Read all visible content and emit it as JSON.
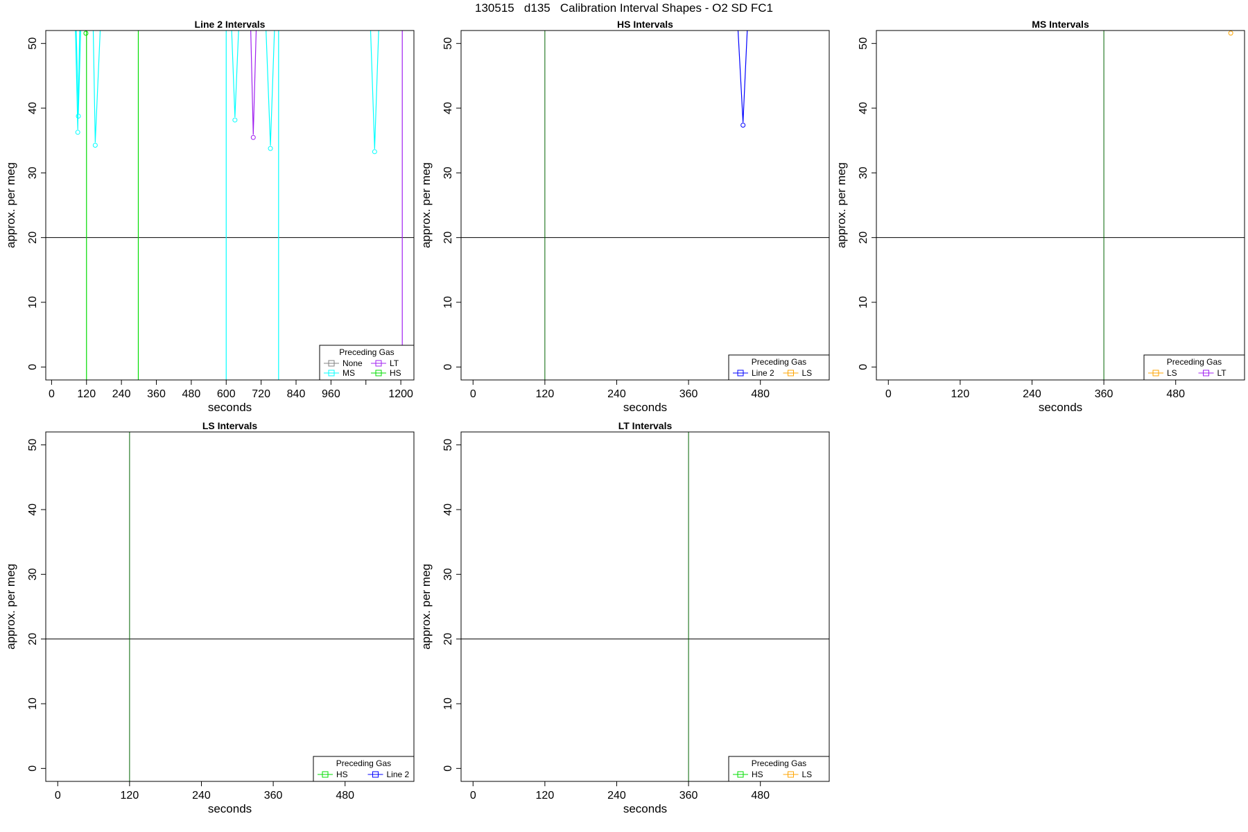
{
  "figure": {
    "title": "130515   d135   Calibration Interval Shapes - O2 SD FC1"
  },
  "colors": {
    "Line 2": "#0000ff",
    "HS": "#00dd00",
    "MS": "#00ffff",
    "LS": "#ffa500",
    "LT": "#a020f0",
    "None": "#808080",
    "reference": "#000000",
    "boundary": "#006400"
  },
  "chart_data": [
    {
      "type": "line",
      "title": "Line 2 Intervals",
      "xlabel": "seconds",
      "ylabel": "approx. per meg",
      "xlim": [
        -20,
        1245
      ],
      "ylim": [
        -2,
        52
      ],
      "xticks": [
        0,
        120,
        240,
        360,
        480,
        600,
        720,
        840,
        960,
        1080,
        1200
      ],
      "xtick_labels": [
        "0",
        "120",
        "240",
        "360",
        "480",
        "600",
        "720",
        "840",
        "960",
        "",
        "1200"
      ],
      "yticks": [
        0,
        10,
        20,
        30,
        40,
        50
      ],
      "reference_line_y": 20,
      "series": [
        {
          "name": "MS",
          "x": [
            78,
            90,
            100
          ],
          "y": [
            60,
            36.7,
            60
          ]
        },
        {
          "name": "MS",
          "x": [
            80,
            92,
            105
          ],
          "y": [
            60,
            39.2,
            60
          ]
        },
        {
          "name": "MS",
          "x": [
            140,
            150,
            175
          ],
          "y": [
            60,
            34.7,
            60
          ]
        },
        {
          "name": "HS",
          "x": [
            115,
            118,
            122
          ],
          "y": [
            60,
            52,
            60
          ]
        },
        {
          "name": "HS",
          "x": [
            298,
            298
          ],
          "y": [
            -5,
            60
          ]
        },
        {
          "name": "HS",
          "x": [
            120,
            120
          ],
          "y": [
            -5,
            60
          ]
        },
        {
          "name": "MS",
          "x": [
            600,
            600
          ],
          "y": [
            -5,
            60
          ]
        },
        {
          "name": "MS",
          "x": [
            612,
            630,
            650
          ],
          "y": [
            60,
            38.6,
            60
          ]
        },
        {
          "name": "LT",
          "x": [
            680,
            693,
            708
          ],
          "y": [
            60,
            35.9,
            60
          ]
        },
        {
          "name": "MS",
          "x": [
            730,
            752,
            772
          ],
          "y": [
            60,
            34.2,
            60
          ]
        },
        {
          "name": "MS",
          "x": [
            780,
            780
          ],
          "y": [
            -5,
            60
          ]
        },
        {
          "name": "MS",
          "x": [
            1090,
            1110,
            1130
          ],
          "y": [
            60,
            33.7,
            60
          ]
        },
        {
          "name": "LT",
          "x": [
            1205,
            1205
          ],
          "y": [
            -5,
            60
          ]
        }
      ],
      "legend": {
        "title": "Preceding Gas",
        "position": "bottom-right",
        "entries": [
          "None",
          "LT",
          "MS",
          "HS"
        ]
      }
    },
    {
      "type": "line",
      "title": "HS Intervals",
      "xlabel": "seconds",
      "ylabel": "approx. per meg",
      "xlim": [
        -20,
        595
      ],
      "ylim": [
        -2,
        52
      ],
      "xticks": [
        0,
        120,
        240,
        360,
        480
      ],
      "xtick_labels": [
        "0",
        "120",
        "240",
        "360",
        "480"
      ],
      "yticks": [
        0,
        10,
        20,
        30,
        40,
        50
      ],
      "reference_line_y": 20,
      "series": [
        {
          "name": "Line 2",
          "x": [
            438,
            451,
            462
          ],
          "y": [
            60,
            37.8,
            60
          ]
        }
      ],
      "vlines": [
        {
          "x": 120,
          "color": "boundary"
        }
      ],
      "legend": {
        "title": "Preceding Gas",
        "position": "bottom-right",
        "entries": [
          "Line 2",
          "LS"
        ]
      }
    },
    {
      "type": "line",
      "title": "MS Intervals",
      "xlabel": "seconds",
      "ylabel": "approx. per meg",
      "xlim": [
        -20,
        595
      ],
      "ylim": [
        -2,
        52
      ],
      "xticks": [
        0,
        120,
        240,
        360,
        480
      ],
      "xtick_labels": [
        "0",
        "120",
        "240",
        "360",
        "480"
      ],
      "yticks": [
        0,
        10,
        20,
        30,
        40,
        50
      ],
      "reference_line_y": 20,
      "series": [
        {
          "name": "LS",
          "x": [
            572
          ],
          "y": [
            51.6
          ],
          "markers_only": true
        }
      ],
      "vlines": [
        {
          "x": 360,
          "color": "boundary"
        }
      ],
      "legend": {
        "title": "Preceding Gas",
        "position": "bottom-right",
        "entries": [
          "LS",
          "LT"
        ]
      }
    },
    {
      "type": "line",
      "title": "LS Intervals",
      "xlabel": "seconds",
      "ylabel": "approx. per meg",
      "xlim": [
        -20,
        595
      ],
      "ylim": [
        -2,
        52
      ],
      "xticks": [
        0,
        120,
        240,
        360,
        480
      ],
      "xtick_labels": [
        "0",
        "120",
        "240",
        "360",
        "480"
      ],
      "yticks": [
        0,
        10,
        20,
        30,
        40,
        50
      ],
      "reference_line_y": 20,
      "series": [],
      "vlines": [
        {
          "x": 120,
          "color": "boundary"
        }
      ],
      "legend": {
        "title": "Preceding Gas",
        "position": "bottom-right",
        "entries": [
          "HS",
          "Line 2"
        ]
      }
    },
    {
      "type": "line",
      "title": "LT Intervals",
      "xlabel": "seconds",
      "ylabel": "approx. per meg",
      "xlim": [
        -20,
        595
      ],
      "ylim": [
        -2,
        52
      ],
      "xticks": [
        0,
        120,
        240,
        360,
        480
      ],
      "xtick_labels": [
        "0",
        "120",
        "240",
        "360",
        "480"
      ],
      "yticks": [
        0,
        10,
        20,
        30,
        40,
        50
      ],
      "reference_line_y": 20,
      "series": [],
      "vlines": [
        {
          "x": 360,
          "color": "boundary"
        }
      ],
      "legend": {
        "title": "Preceding Gas",
        "position": "bottom-right",
        "entries": [
          "HS",
          "LS"
        ]
      }
    }
  ]
}
